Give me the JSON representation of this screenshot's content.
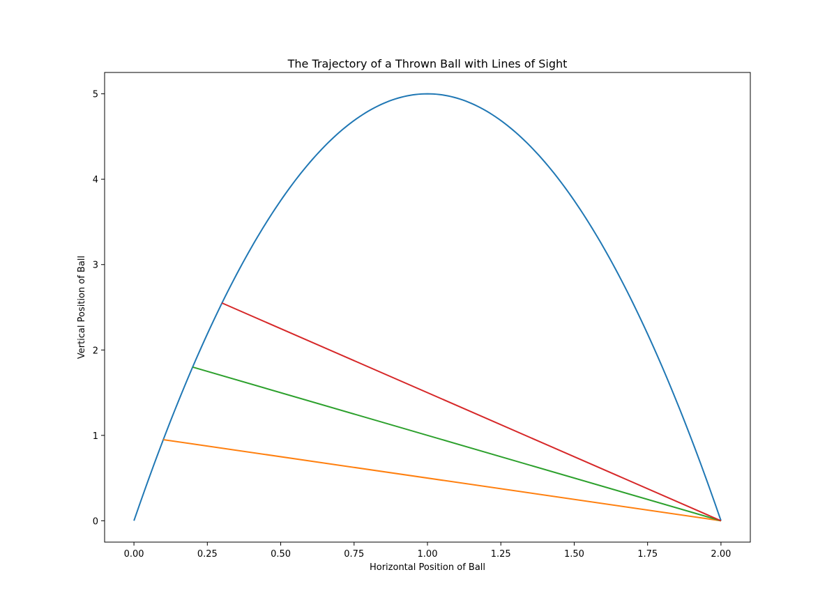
{
  "chart_data": {
    "type": "line",
    "title": "The Trajectory of a Thrown Ball with Lines of Sight",
    "xlabel": "Horizontal Position of Ball",
    "ylabel": "Vertical Position of Ball",
    "xlim": [
      -0.1,
      2.1
    ],
    "ylim": [
      -0.25,
      5.25
    ],
    "x_ticks": [
      0.0,
      0.25,
      0.5,
      0.75,
      1.0,
      1.25,
      1.5,
      1.75,
      2.0
    ],
    "x_tick_labels": [
      "0.00",
      "0.25",
      "0.50",
      "0.75",
      "1.00",
      "1.25",
      "1.50",
      "1.75",
      "2.00"
    ],
    "y_ticks": [
      0,
      1,
      2,
      3,
      4,
      5
    ],
    "y_tick_labels": [
      "0",
      "1",
      "2",
      "3",
      "4",
      "5"
    ],
    "grid": false,
    "legend": "none",
    "trajectory": {
      "formula": "y = 5 * x * (2 - x)",
      "x_range": [
        0,
        2
      ],
      "color": "#1f77b4"
    },
    "series": [
      {
        "color": "#ff7f0e",
        "x": [
          0.1,
          2.0
        ],
        "y": [
          0.95,
          0.0
        ]
      },
      {
        "color": "#2ca02c",
        "x": [
          0.2,
          2.0
        ],
        "y": [
          1.8,
          0.0
        ]
      },
      {
        "color": "#d62728",
        "x": [
          0.3,
          2.0
        ],
        "y": [
          2.55,
          0.0
        ]
      }
    ]
  }
}
